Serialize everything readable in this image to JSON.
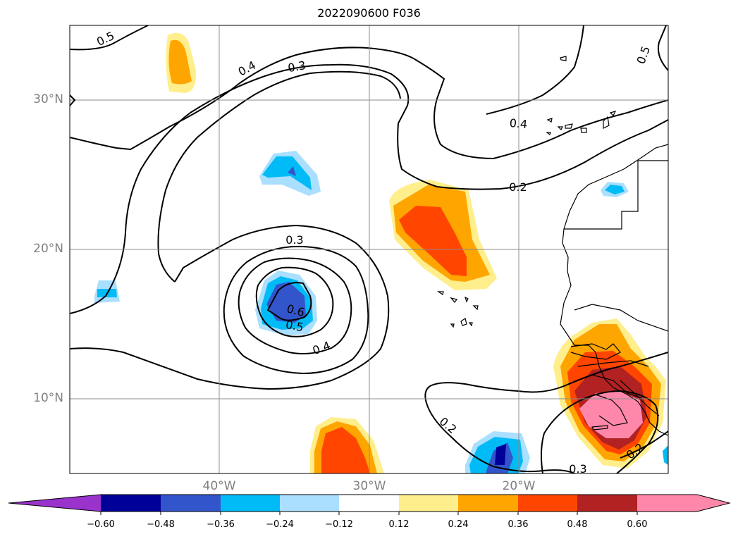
{
  "title": "2022090600 F036",
  "map": {
    "lat_labels": [
      "30°N",
      "20°N",
      "10°N"
    ],
    "lon_labels": [
      "40°W",
      "30°W",
      "20°W"
    ],
    "contour_labels": [
      "0.5",
      "0.4",
      "0.3",
      "0.4",
      "0.2",
      "0.3",
      "0.6",
      "0.5",
      "0.4",
      "0.2",
      "0.3",
      "0.2",
      "0.5"
    ]
  },
  "colorbar": {
    "ticks": [
      "−0.60",
      "−0.48",
      "−0.36",
      "−0.24",
      "−0.12",
      "0.12",
      "0.24",
      "0.36",
      "0.48",
      "0.60"
    ],
    "colors": [
      "#9933cc",
      "#000099",
      "#3355cc",
      "#00bbf5",
      "#aadfff",
      "#ffffff",
      "#ffee8c",
      "#ffa500",
      "#ff4500",
      "#b22222",
      "#ff88aa",
      "#ff88aa"
    ]
  }
}
